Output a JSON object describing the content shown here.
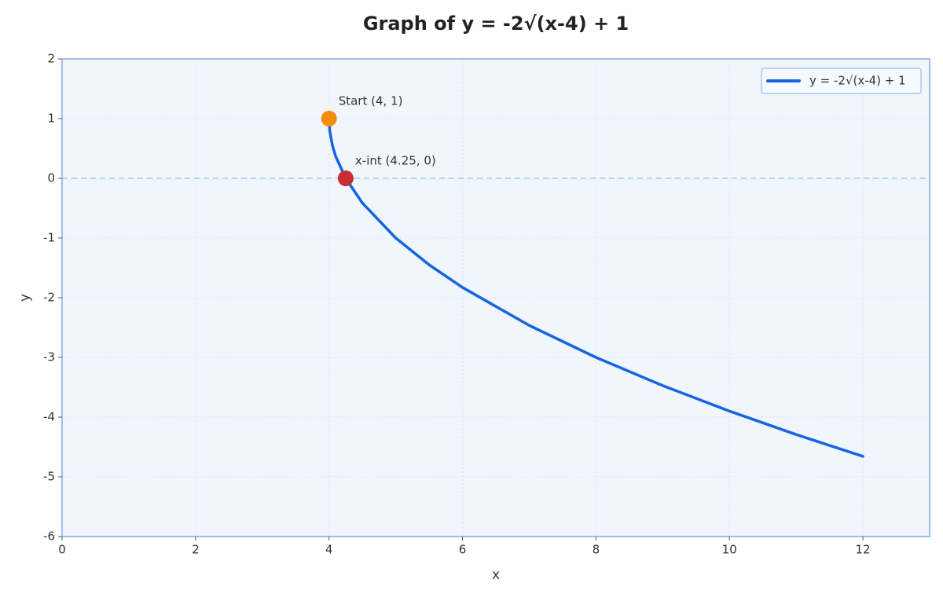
{
  "chart_data": {
    "type": "line",
    "title": "Graph of y = -2√(x-4) + 1",
    "x_label": "x",
    "y_label": "y",
    "x": [
      4,
      4.01,
      4.05,
      4.1,
      4.25,
      4.5,
      5,
      5.5,
      6,
      7,
      8,
      9,
      10,
      11,
      12
    ],
    "series": [
      {
        "name": "y = -2√(x-4) + 1",
        "color": "#1565e0",
        "values": [
          1,
          0.8,
          0.553,
          0.368,
          0,
          -0.414,
          -1,
          -1.449,
          -1.828,
          -2.464,
          -3,
          -3.472,
          -3.899,
          -4.292,
          -4.657
        ]
      }
    ],
    "points": [
      {
        "label": "Start (4, 1)",
        "x": 4,
        "y": 1,
        "color": "#f58c0a"
      },
      {
        "label": "x-int (4.25, 0)",
        "x": 4.25,
        "y": 0,
        "color": "#c62f2f"
      }
    ],
    "reference_line": {
      "y": 0,
      "color": "#b8d4ea"
    },
    "xlim": [
      0,
      13
    ],
    "ylim": [
      -6,
      2
    ],
    "xticks": [
      0,
      2,
      4,
      6,
      8,
      10,
      12
    ],
    "yticks": [
      -6,
      -5,
      -4,
      -3,
      -2,
      -1,
      0,
      1,
      2
    ],
    "grid": true,
    "legend": "upper right"
  }
}
